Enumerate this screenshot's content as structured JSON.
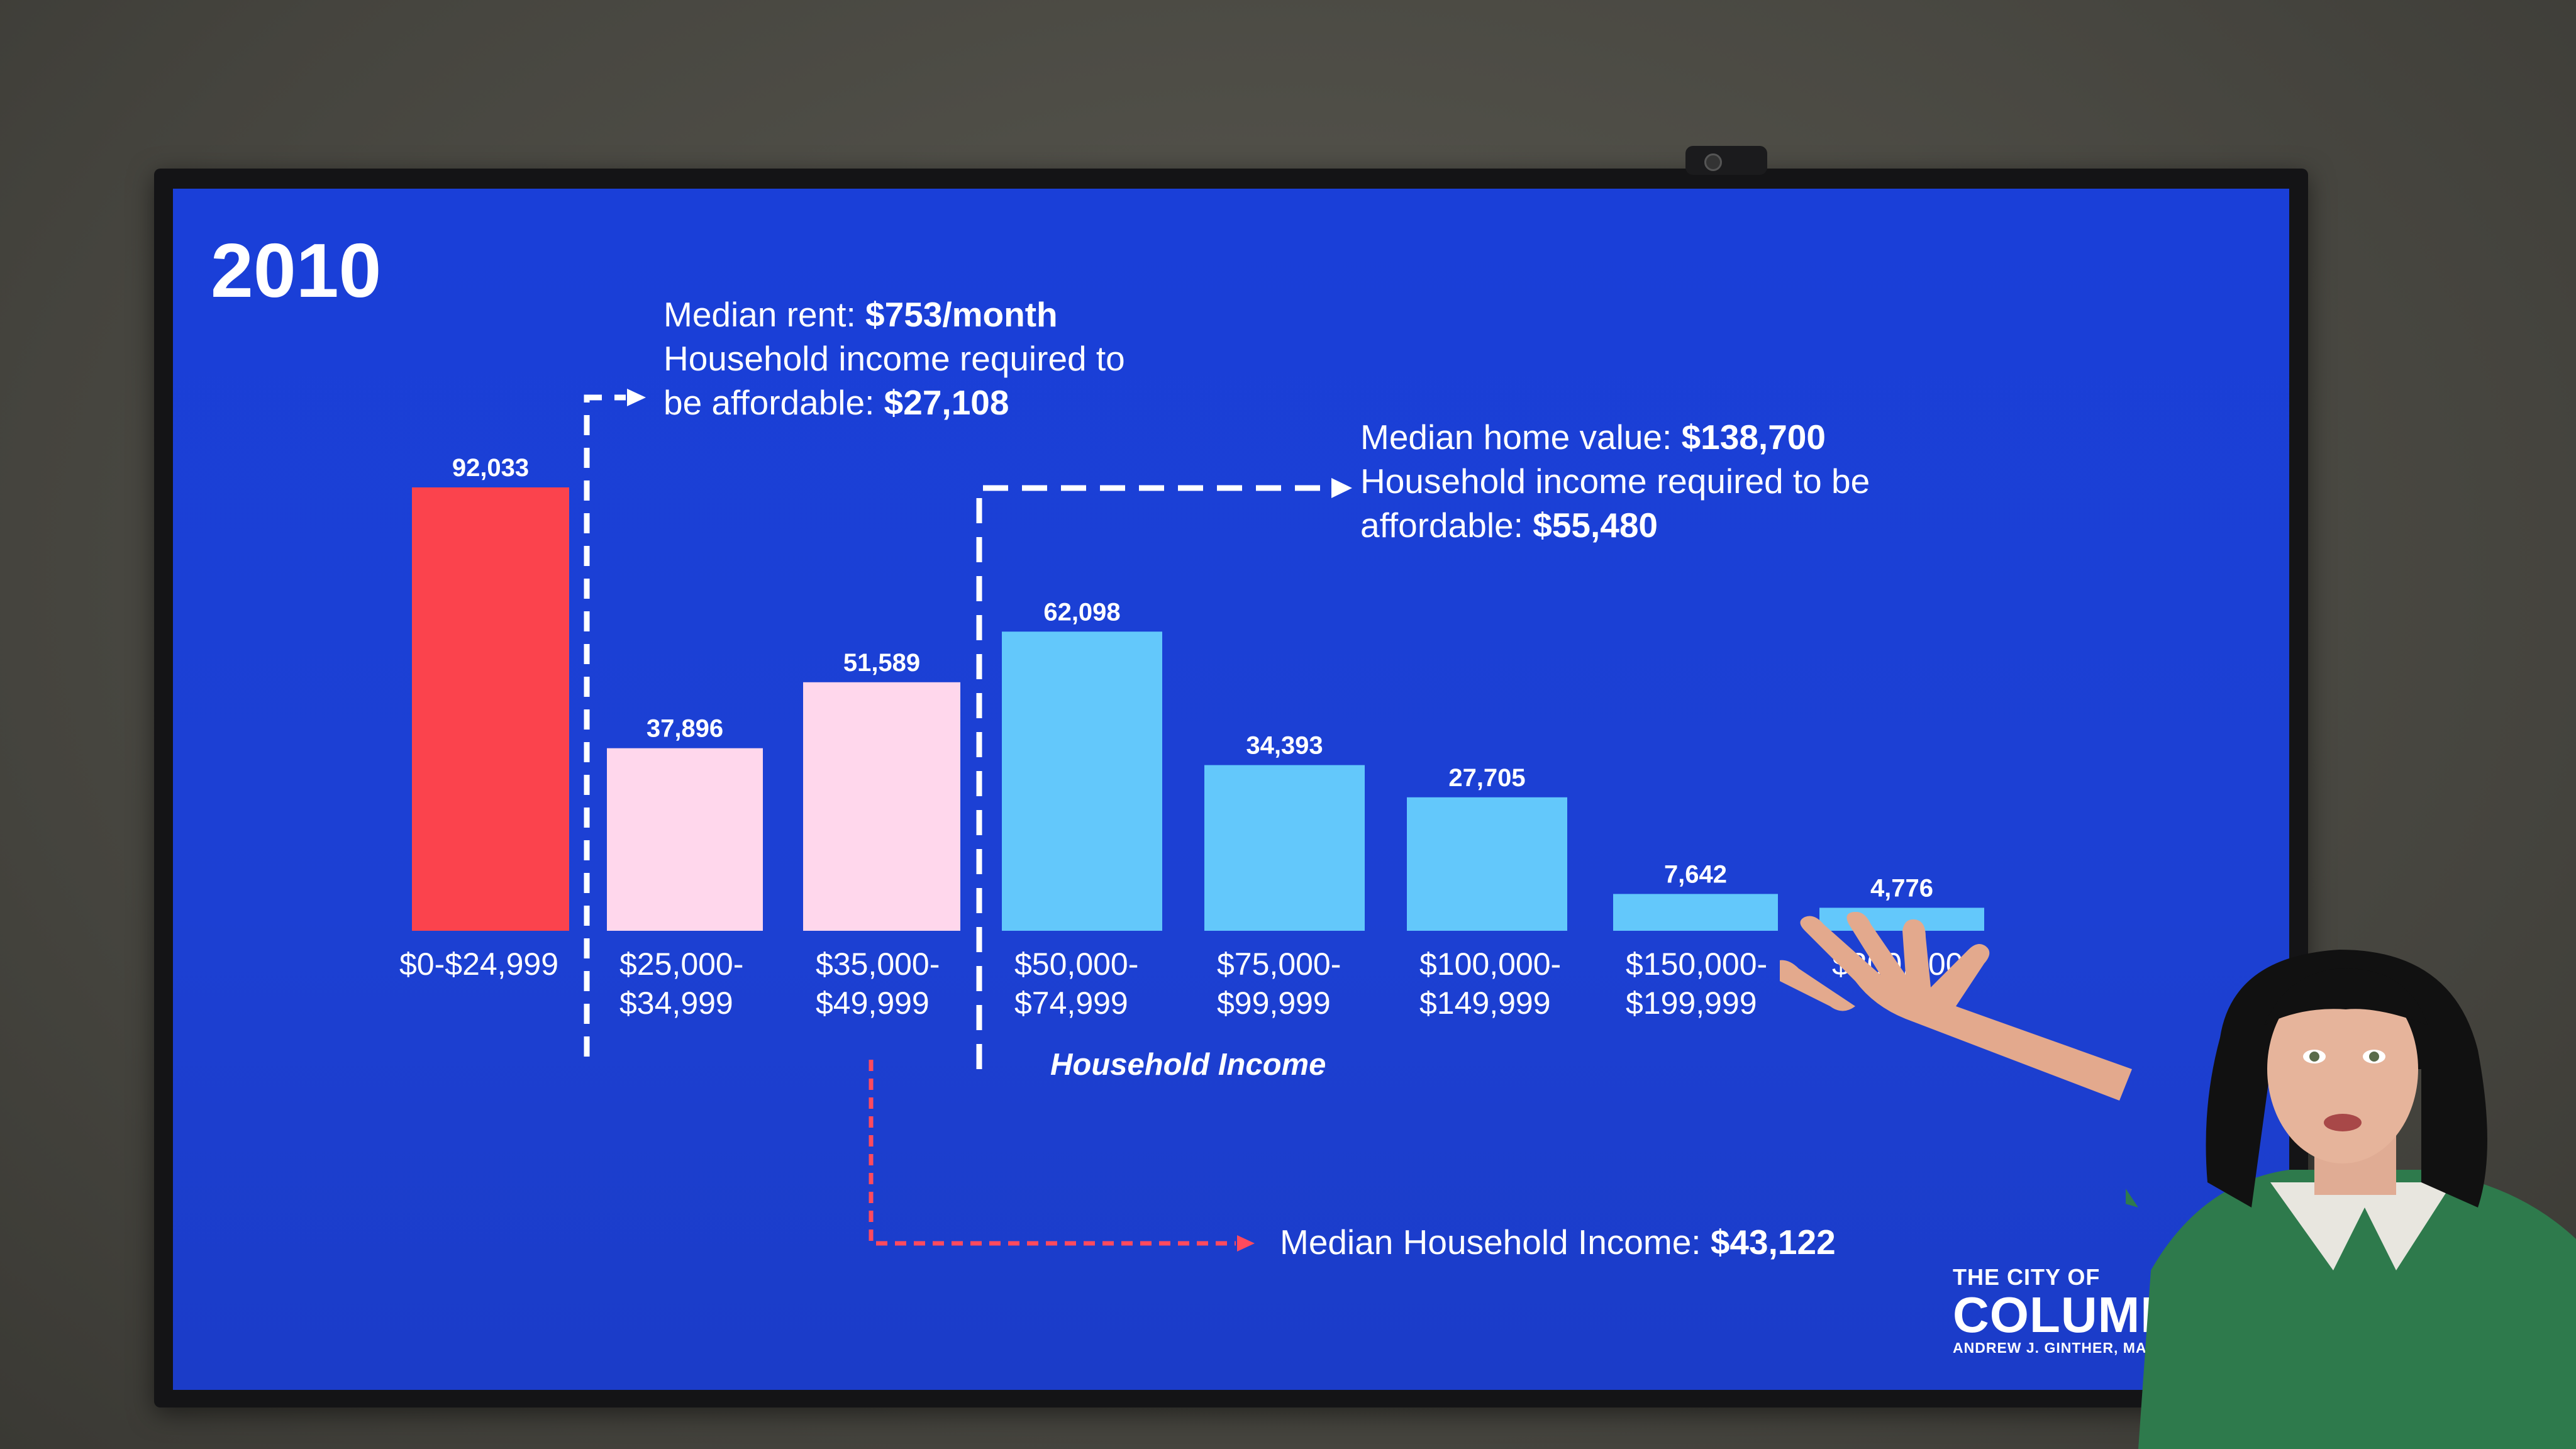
{
  "colors": {
    "screen_bg": "#1b3fd6",
    "bar_red": "#fb434d",
    "bar_pink": "#ffd7ec",
    "bar_blue": "#63c8fb",
    "dash_white": "#ffffff",
    "dash_red": "#ff4a5e",
    "text": "#ffffff"
  },
  "slide": {
    "year": "2010",
    "rent": {
      "line1_label": "Median rent: ",
      "line1_value": "$753/month",
      "line2": "Household income required to",
      "line3_label": "be affordable: ",
      "line3_value": "$27,108"
    },
    "home": {
      "line1_label": "Median home value: ",
      "line1_value": "$138,700",
      "line2": "Household income required to be",
      "line3_label": "affordable: ",
      "line3_value": "$55,480"
    },
    "median_income": {
      "label": "Median Household Income: ",
      "value": "$43,122"
    },
    "logo": {
      "line1": "THE CITY OF",
      "line2_main": "COLUMBU",
      "line2_tail": "S",
      "line3": "ANDREW J. GINTHER, MAYOR"
    }
  },
  "chart_data": {
    "type": "bar",
    "xlabel": "Household Income",
    "ylabel": "",
    "ylim": [
      0,
      100000
    ],
    "grid": false,
    "categories": [
      [
        "$0-$24,999"
      ],
      [
        "$25,000-",
        "$34,999"
      ],
      [
        "$35,000-",
        "$49,999"
      ],
      [
        "$50,000-",
        "$74,999"
      ],
      [
        "$75,000-",
        "$99,999"
      ],
      [
        "$100,000-",
        "$149,999"
      ],
      [
        "$150,000-",
        "$199,999"
      ],
      [
        "$200,000+"
      ]
    ],
    "values": [
      92033,
      37896,
      51589,
      62098,
      34393,
      27705,
      7642,
      4776
    ],
    "value_labels": [
      "92,033",
      "37,896",
      "51,589",
      "62,098",
      "34,393",
      "27,705",
      "7,642",
      "4,776"
    ],
    "bar_colors": [
      "#fb434d",
      "#ffd7ec",
      "#ffd7ec",
      "#63c8fb",
      "#63c8fb",
      "#63c8fb",
      "#63c8fb",
      "#63c8fb"
    ]
  }
}
